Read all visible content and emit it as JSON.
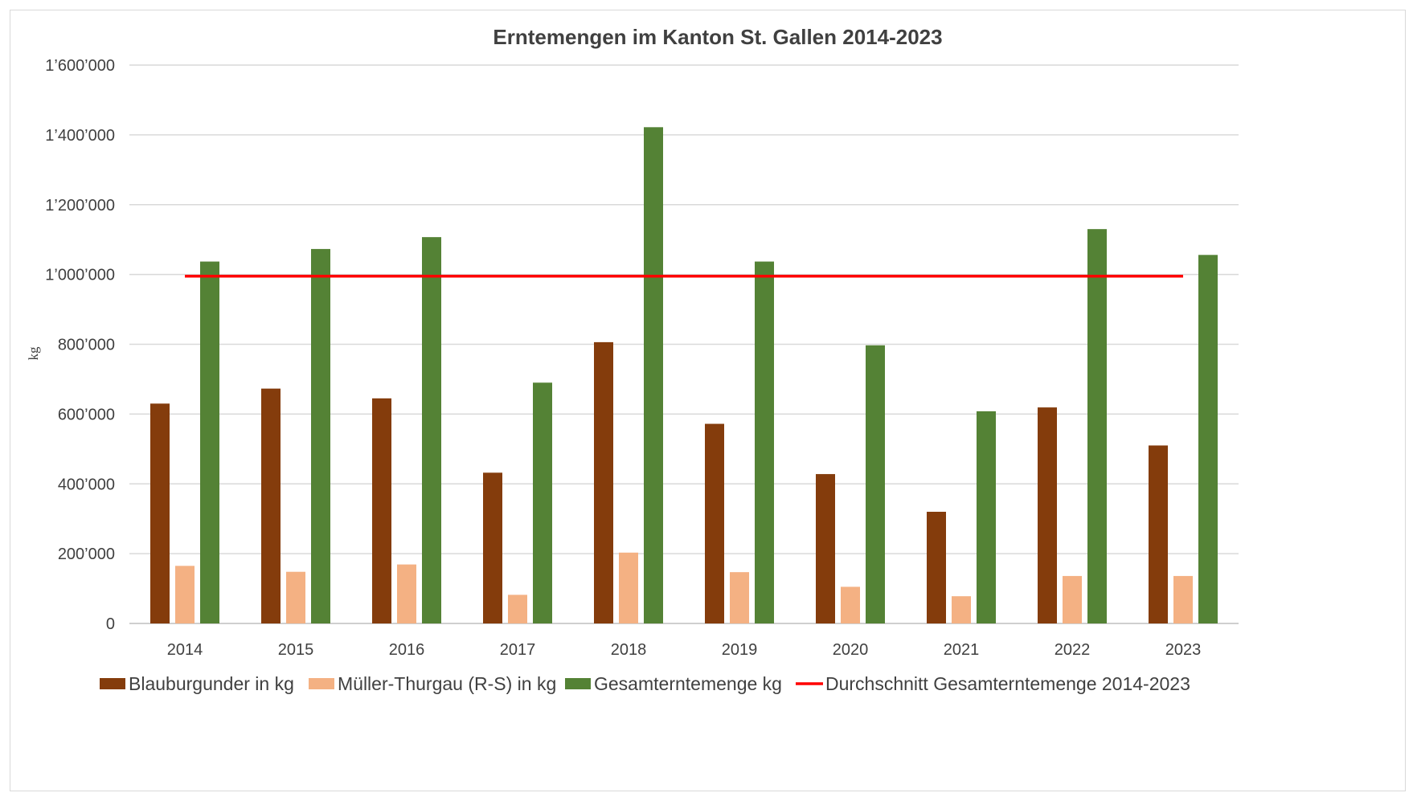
{
  "chart_data": {
    "type": "bar",
    "title": "Erntemengen im Kanton St. Gallen 2014-2023",
    "ylabel": "kg",
    "xlabel": "",
    "categories": [
      "2014",
      "2015",
      "2016",
      "2017",
      "2018",
      "2019",
      "2020",
      "2021",
      "2022",
      "2023"
    ],
    "ylim": [
      0,
      1600000
    ],
    "yticks": [
      {
        "value": 0,
        "label": "0"
      },
      {
        "value": 200000,
        "label": "200’000"
      },
      {
        "value": 400000,
        "label": "400’000"
      },
      {
        "value": 600000,
        "label": "600’000"
      },
      {
        "value": 800000,
        "label": "800’000"
      },
      {
        "value": 1000000,
        "label": "1’000’000"
      },
      {
        "value": 1200000,
        "label": "1’200’000"
      },
      {
        "value": 1400000,
        "label": "1’400’000"
      },
      {
        "value": 1600000,
        "label": "1’600’000"
      }
    ],
    "grid": true,
    "legend_position": "bottom",
    "series": [
      {
        "name": "Blauburgunder in kg",
        "kind": "bar",
        "color": "#843C0C",
        "values": [
          630000,
          673000,
          645000,
          432000,
          806000,
          572000,
          428000,
          320000,
          619000,
          510000
        ]
      },
      {
        "name": "Müller-Thurgau (R-S) in kg",
        "kind": "bar",
        "color": "#F4B183",
        "values": [
          165000,
          148000,
          169000,
          82000,
          203000,
          147000,
          105000,
          78000,
          136000,
          136000
        ]
      },
      {
        "name": "Gesamterntemenge kg",
        "kind": "bar",
        "color": "#548235",
        "values": [
          1037000,
          1073000,
          1107000,
          690000,
          1422000,
          1037000,
          797000,
          608000,
          1130000,
          1056000
        ]
      },
      {
        "name": "Durchschnitt Gesamterntemenge 2014-2023",
        "kind": "line",
        "color": "#FF0000",
        "values": [
          995000,
          995000,
          995000,
          995000,
          995000,
          995000,
          995000,
          995000,
          995000,
          995000
        ]
      }
    ]
  }
}
